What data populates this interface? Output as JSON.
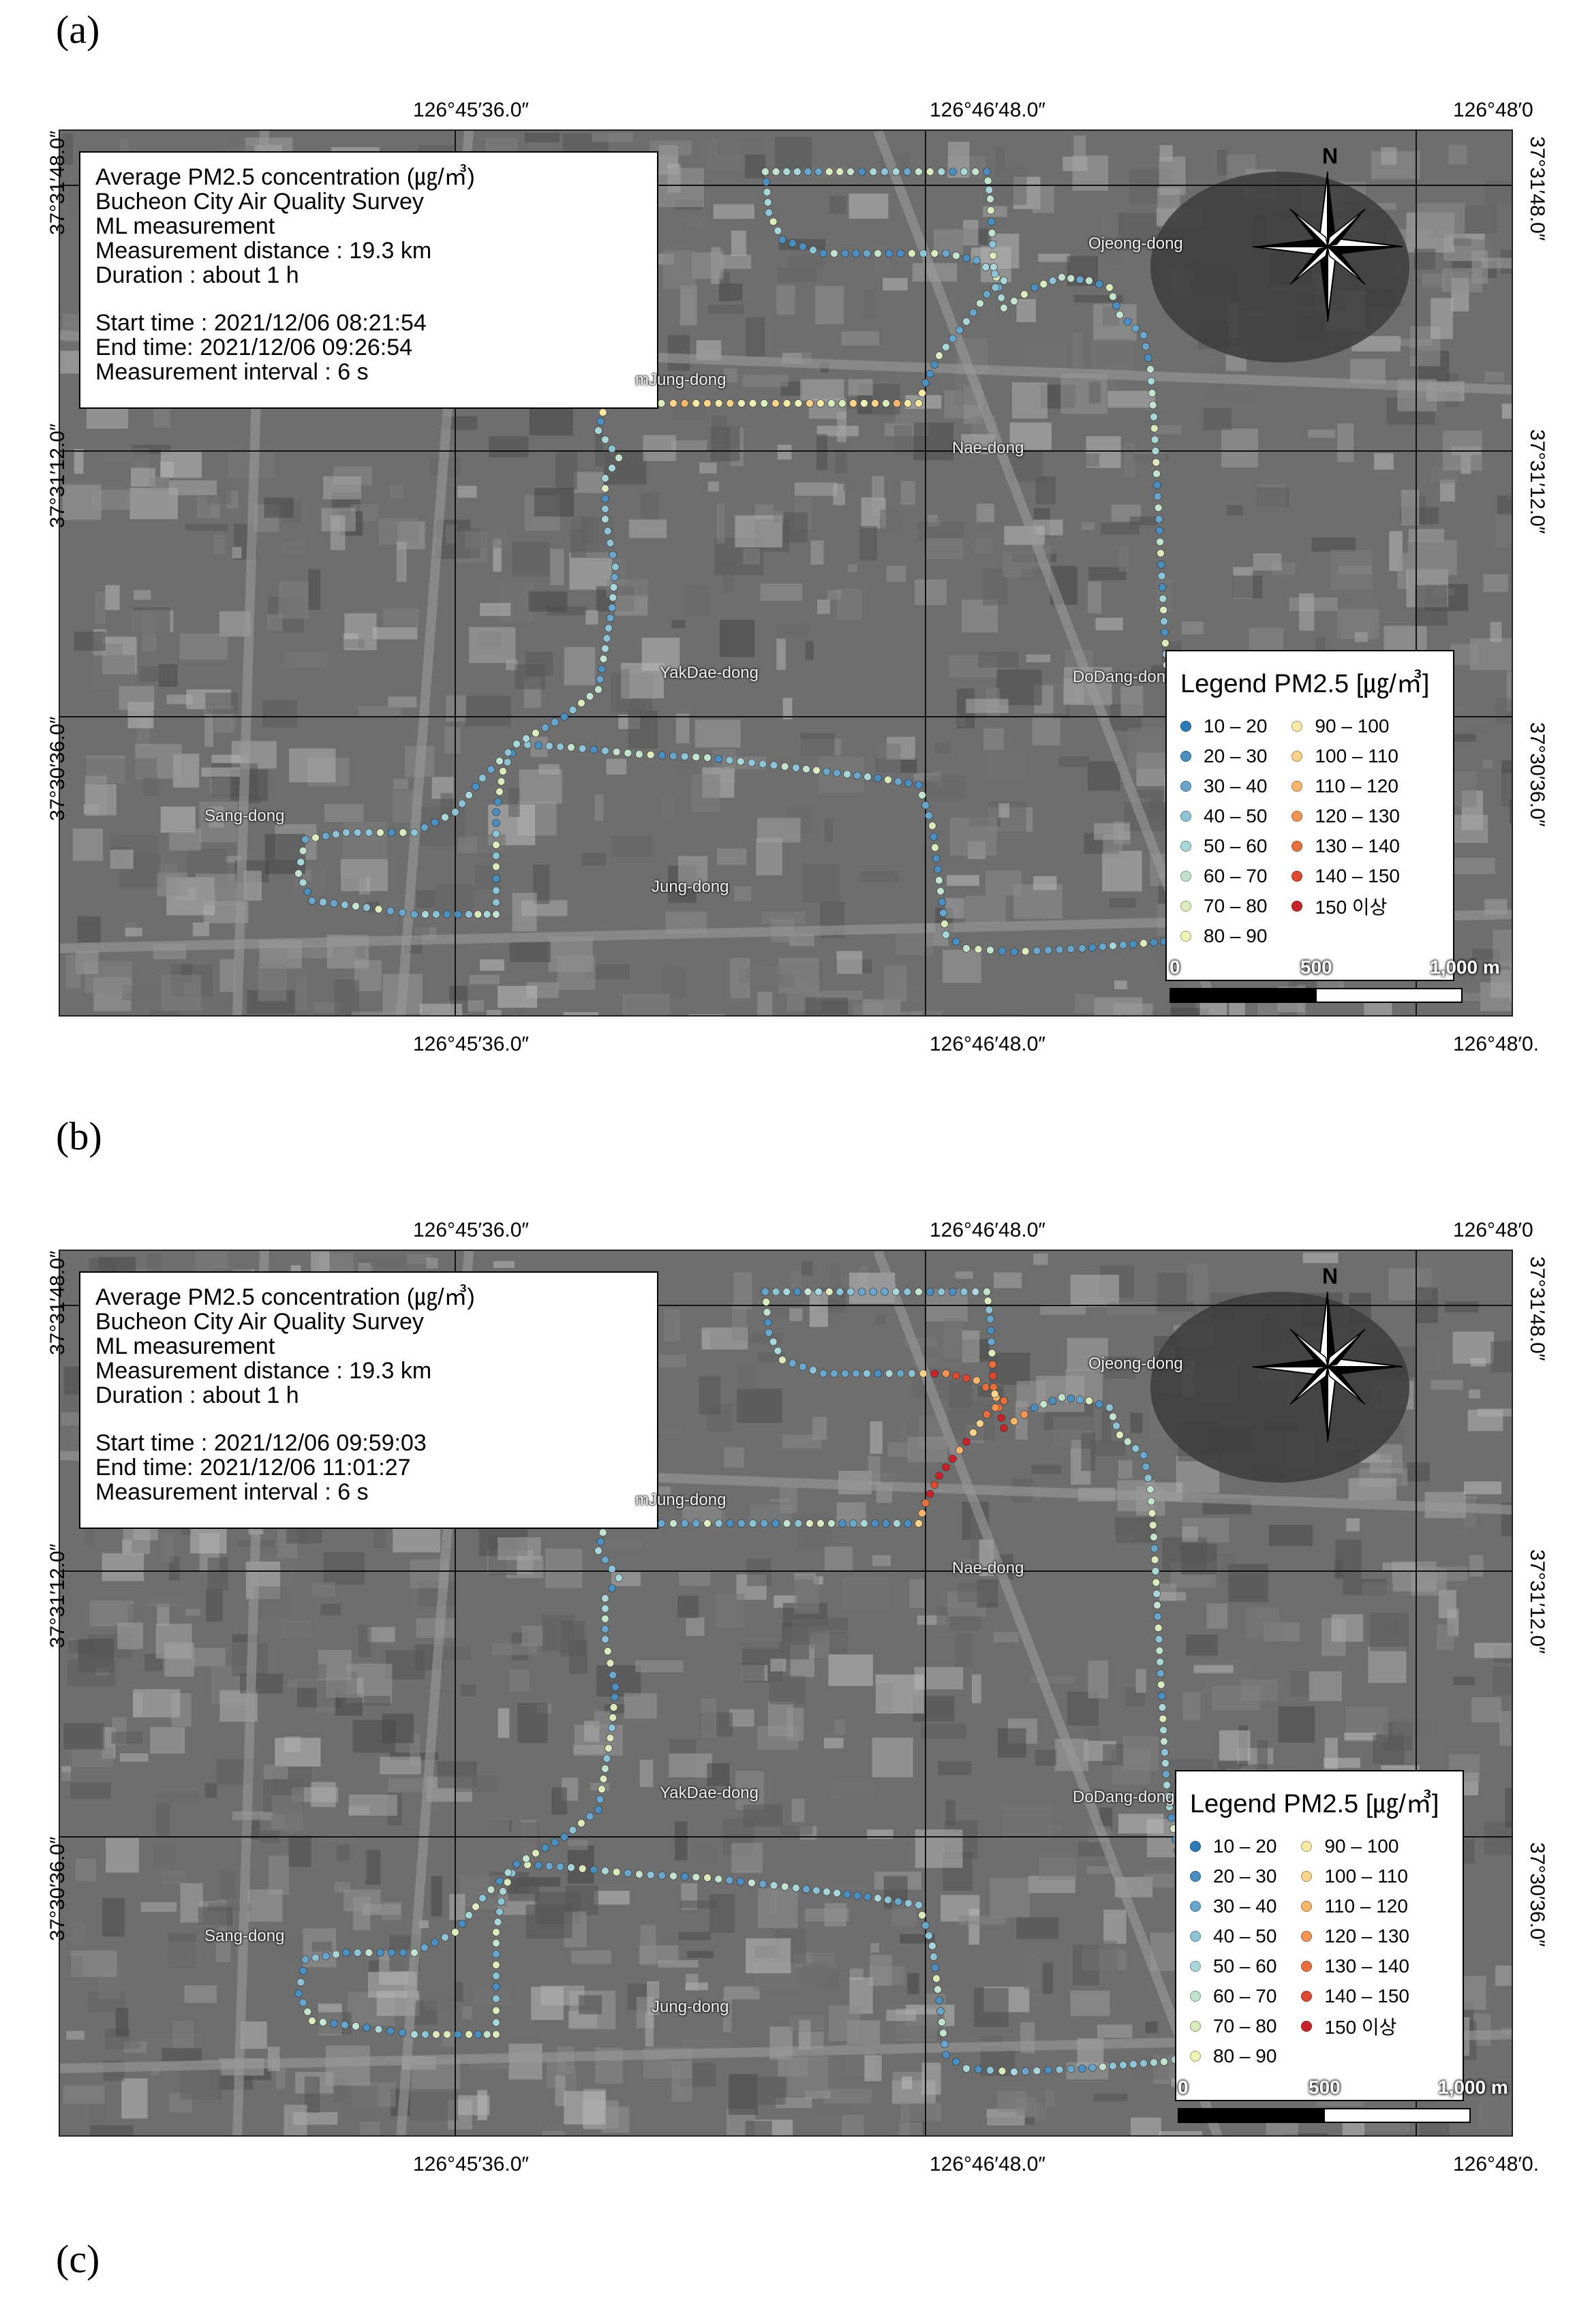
{
  "panels": [
    {
      "label": "(a)",
      "info": {
        "title": "Average PM2.5 concentration (㎍/㎥)",
        "line1": "Bucheon City Air Quality Survey",
        "line2": "ML measurement",
        "distance": "Measurement distance : 19.3 km",
        "duration": "Duration : about 1 h",
        "start": "Start time : 2021/12/06 08:21:54",
        "end": "End time: 2021/12/06 09:26:54",
        "interval": "Measurement interval : 6 s"
      },
      "ticks": {
        "top": [
          "126°45′36.0″",
          "126°46′48.0″",
          "126°48′0"
        ],
        "bottom": [
          "126°45′36.0″",
          "126°46′48.0″",
          "126°48′0."
        ],
        "left": [
          "37°31′48.0″",
          "37°31′12.0″",
          "37°30′36.0″"
        ],
        "right": [
          "37°31′48.0″",
          "37°31′12.0″",
          "37°30′36.0″"
        ]
      }
    },
    {
      "label": "(b)",
      "info": {
        "title": "Average PM2.5 concentration (㎍/㎥)",
        "line1": "Bucheon City Air Quality Survey",
        "line2": "ML measurement",
        "distance": "Measurement distance : 19.3 km",
        "duration": "Duration : about 1 h",
        "start": "Start time : 2021/12/06 09:59:03",
        "end": "End time: 2021/12/06 11:01:27",
        "interval": "Measurement interval : 6 s"
      },
      "ticks": {
        "top": [
          "126°45′36.0″",
          "126°46′48.0″",
          "126°48′0"
        ],
        "bottom": [
          "126°45′36.0″",
          "126°46′48.0″",
          "126°48′0."
        ],
        "left": [
          "37°31′48.0″",
          "37°31′12.0″",
          "37°30′36.0″"
        ],
        "right": [
          "37°31′48.0″",
          "37°31′12.0″",
          "37°30′36.0″"
        ]
      }
    }
  ],
  "panel_c_label": "(c)",
  "districts": [
    "Ojeong-dong",
    "mJung-dong",
    "Nae-dong",
    "YakDae-dong",
    "DoDang-dong",
    "Sang-dong",
    "Jung-dong"
  ],
  "north_label": "N",
  "legend": {
    "title": "Legend PM2.5 [㎍/㎥]",
    "items": [
      {
        "label": "10 – 20",
        "color": "#2c7bb6"
      },
      {
        "label": "20 – 30",
        "color": "#4a8fc0"
      },
      {
        "label": "30 – 40",
        "color": "#6aa5cc"
      },
      {
        "label": "40 – 50",
        "color": "#8ec3d6"
      },
      {
        "label": "50 – 60",
        "color": "#a9d6d8"
      },
      {
        "label": "60 – 70",
        "color": "#c4e3cf"
      },
      {
        "label": "70 – 80",
        "color": "#dcebbd"
      },
      {
        "label": "80 – 90",
        "color": "#eef3b5"
      },
      {
        "label": "90 – 100",
        "color": "#f7e9a6"
      },
      {
        "label": "100 – 110",
        "color": "#fbd38a"
      },
      {
        "label": "110 – 120",
        "color": "#f9b56b"
      },
      {
        "label": "120 – 130",
        "color": "#f39455"
      },
      {
        "label": "130 – 140",
        "color": "#e8703f"
      },
      {
        "label": "140 – 150",
        "color": "#dc4b31"
      },
      {
        "label": "150 이상",
        "color": "#c8232a"
      }
    ]
  },
  "scale": {
    "zero": "0",
    "mid": "500",
    "end": "1,000 m"
  },
  "colors": {
    "map_bg": "#6e6e6e",
    "grid": "#111111",
    "road": "#9a9a9a"
  }
}
